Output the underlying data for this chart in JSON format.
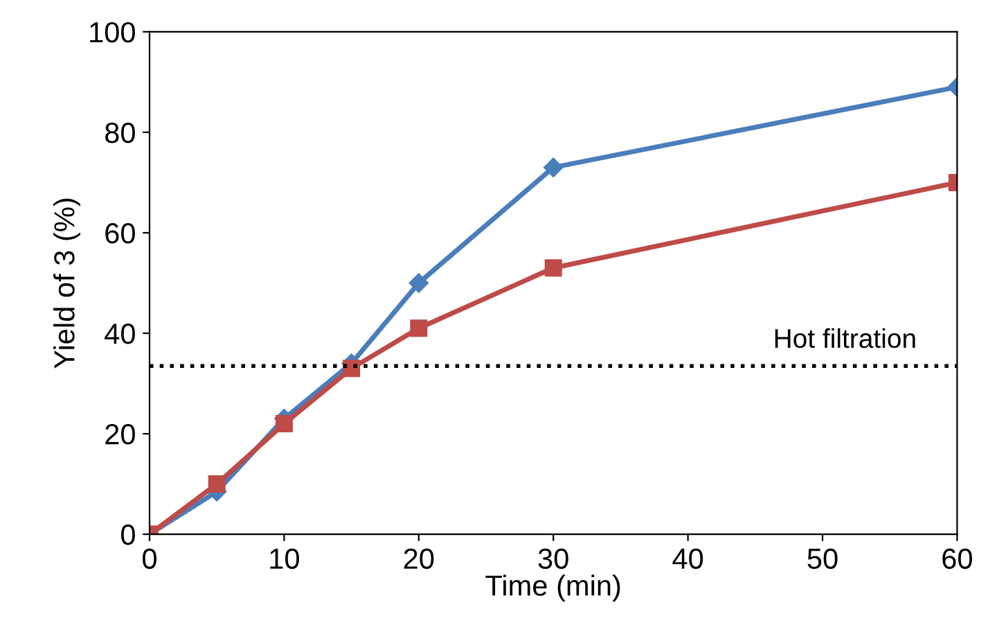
{
  "chart_data": {
    "type": "line",
    "xlabel": "Time (min)",
    "ylabel": "Yield of 3 (%)",
    "xlim": [
      0,
      60
    ],
    "ylim": [
      0,
      100
    ],
    "xticks": [
      0,
      10,
      20,
      30,
      40,
      50,
      60
    ],
    "yticks": [
      0,
      20,
      40,
      60,
      80,
      100
    ],
    "grid": false,
    "series": [
      {
        "color": "#4a7ebb",
        "marker": "diamond",
        "x": [
          0,
          5,
          10,
          15,
          20,
          30,
          60
        ],
        "values": [
          0,
          8.5,
          23,
          34,
          50,
          73,
          89
        ]
      },
      {
        "color": "#be4b48",
        "marker": "square",
        "x": [
          0,
          5,
          10,
          15,
          20,
          30,
          60
        ],
        "values": [
          0,
          10,
          22,
          33,
          41,
          53,
          70
        ]
      }
    ],
    "ref_lines": [
      {
        "axis": "y",
        "value": 33.5,
        "label": "Hot filtration",
        "color": "#000000",
        "line_style": "dotted"
      }
    ]
  }
}
